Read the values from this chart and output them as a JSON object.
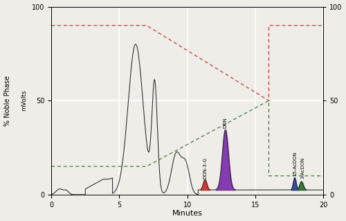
{
  "xlabel": "Minutes",
  "ylabel_left_outer": "% Noble Phase",
  "ylabel_left_inner": "mVolts",
  "xlim": [
    0,
    20
  ],
  "ylim": [
    0,
    100
  ],
  "yticks": [
    0,
    50,
    100
  ],
  "xticks": [
    0,
    5,
    10,
    15,
    20
  ],
  "background_color": "#eeede8",
  "grid_color": "#ffffff",
  "main_line_color": "#333333",
  "red_dashed_color": "#cc3333",
  "green_dashed_color": "#447744",
  "red_line": {
    "x": [
      0,
      7.0,
      16.0,
      16.0,
      20
    ],
    "y": [
      90,
      90,
      50,
      90,
      90
    ]
  },
  "green_line": {
    "x": [
      0,
      7.0,
      16.0,
      16.0,
      20
    ],
    "y": [
      15,
      15,
      50,
      10,
      10
    ]
  },
  "peaks": [
    {
      "name": "DON-3-G",
      "x": 11.3,
      "sigma": 0.13,
      "height": 5.5,
      "baseline": 2.5,
      "color": "#cc2222"
    },
    {
      "name": "DON",
      "x": 12.8,
      "sigma": 0.22,
      "height": 32,
      "baseline": 2.5,
      "color": "#7722aa"
    },
    {
      "name": "15-AcDON",
      "x": 17.9,
      "sigma": 0.1,
      "height": 6.5,
      "baseline": 2.5,
      "color": "#223399"
    },
    {
      "name": "3-AcDON",
      "x": 18.4,
      "sigma": 0.13,
      "height": 4.5,
      "baseline": 2.5,
      "color": "#226622"
    }
  ]
}
